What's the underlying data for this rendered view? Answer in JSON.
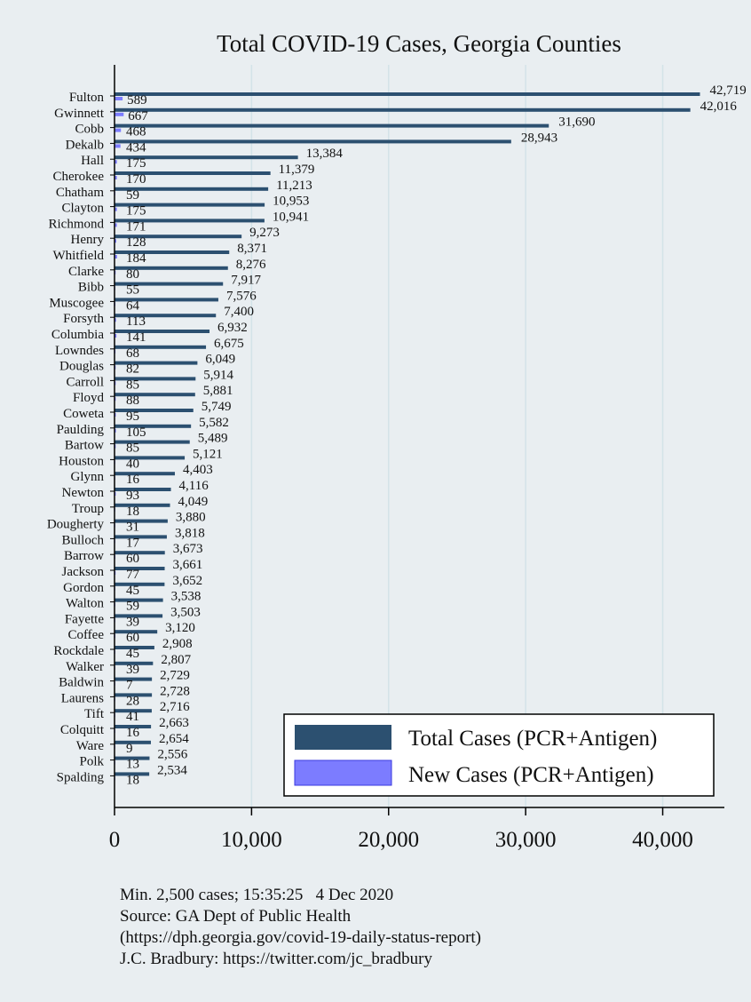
{
  "chart_data": {
    "type": "bar",
    "orientation": "horizontal",
    "title": "Total COVID-19 Cases, Georgia Counties",
    "categories": [
      "Fulton",
      "Gwinnett",
      "Cobb",
      "Dekalb",
      "Hall",
      "Cherokee",
      "Chatham",
      "Clayton",
      "Richmond",
      "Henry",
      "Whitfield",
      "Clarke",
      "Bibb",
      "Muscogee",
      "Forsyth",
      "Columbia",
      "Lowndes",
      "Douglas",
      "Carroll",
      "Floyd",
      "Coweta",
      "Paulding",
      "Bartow",
      "Houston",
      "Glynn",
      "Newton",
      "Troup",
      "Dougherty",
      "Bulloch",
      "Barrow",
      "Jackson",
      "Gordon",
      "Walton",
      "Fayette",
      "Coffee",
      "Rockdale",
      "Walker",
      "Baldwin",
      "Laurens",
      "Tift",
      "Colquitt",
      "Ware",
      "Polk",
      "Spalding"
    ],
    "series": [
      {
        "name": "Total Cases (PCR+Antigen)",
        "color": "#2c5070",
        "values": [
          42719,
          42016,
          31690,
          28943,
          13384,
          11379,
          11213,
          10953,
          10941,
          9273,
          8371,
          8276,
          7917,
          7576,
          7400,
          6932,
          6675,
          6049,
          5914,
          5881,
          5749,
          5582,
          5489,
          5121,
          4403,
          4116,
          4049,
          3880,
          3818,
          3673,
          3661,
          3652,
          3538,
          3503,
          3120,
          2908,
          2807,
          2729,
          2728,
          2716,
          2663,
          2654,
          2556,
          2534
        ]
      },
      {
        "name": "New Cases (PCR+Antigen)",
        "color": "#7c7cff",
        "values": [
          589,
          667,
          468,
          434,
          175,
          170,
          59,
          175,
          171,
          128,
          184,
          80,
          55,
          64,
          113,
          141,
          68,
          82,
          85,
          88,
          95,
          105,
          85,
          40,
          16,
          93,
          18,
          31,
          17,
          60,
          77,
          45,
          59,
          39,
          60,
          45,
          39,
          7,
          28,
          41,
          16,
          9,
          13,
          18
        ]
      }
    ],
    "x_ticks": [
      0,
      10000,
      20000,
      30000,
      40000
    ],
    "x_tick_labels": [
      "0",
      "10,000",
      "20,000",
      "30,000",
      "40,000"
    ],
    "xlim": [
      0,
      44500
    ],
    "grid": true,
    "legend_position": "bottom-right"
  },
  "notes": {
    "line1": "Min. 2,500 cases; 15:35:25   4 Dec 2020",
    "line2": "Source: GA Dept of Public Health",
    "line3": "(https://dph.georgia.gov/covid-19-daily-status-report)",
    "line4": "J.C. Bradbury: https://twitter.com/jc_bradbury"
  }
}
